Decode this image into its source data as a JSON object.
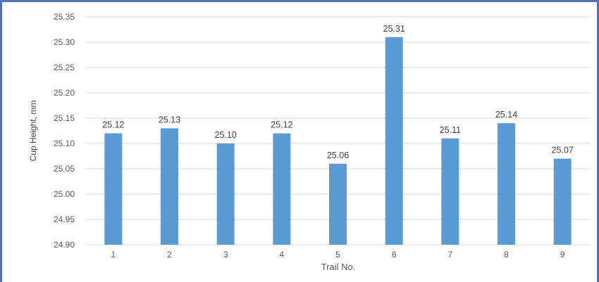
{
  "chart_data": {
    "type": "bar",
    "categories": [
      "1",
      "2",
      "3",
      "4",
      "5",
      "6",
      "7",
      "8",
      "9"
    ],
    "values": [
      25.12,
      25.13,
      25.1,
      25.12,
      25.06,
      25.31,
      25.11,
      25.14,
      25.07
    ],
    "data_labels": [
      "25.12",
      "25.13",
      "25.10",
      "25.12",
      "25.06",
      "25.31",
      "25.11",
      "25.14",
      "25.07"
    ],
    "xlabel": "Trail No.",
    "ylabel": "Cup Height, mm",
    "ylim": [
      24.9,
      25.35
    ],
    "yticks": [
      "24.90",
      "24.95",
      "25.00",
      "25.05",
      "25.10",
      "25.15",
      "25.20",
      "25.25",
      "25.30",
      "25.35"
    ],
    "bar_color": "#5b9bd5",
    "gridlines": true,
    "legend": "none"
  }
}
